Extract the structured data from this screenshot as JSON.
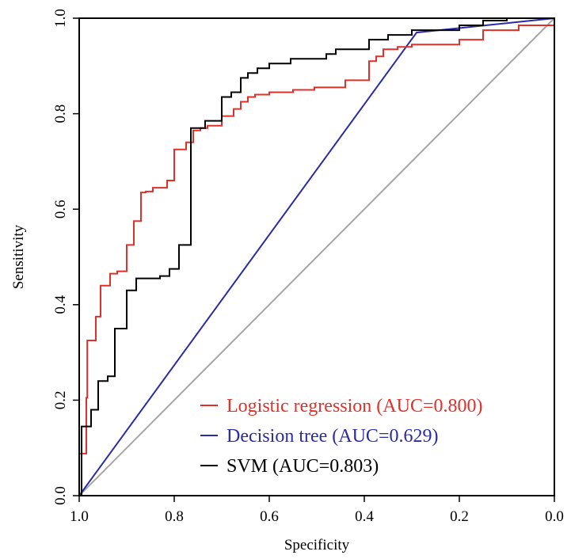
{
  "chart_data": {
    "type": "line",
    "xlabel": "Specificity",
    "ylabel": "Sensitivity",
    "xlim": [
      1.0,
      0.0
    ],
    "ylim": [
      0.0,
      1.0
    ],
    "x_ticks": [
      "1.0",
      "0.8",
      "0.6",
      "0.4",
      "0.2",
      "0.0"
    ],
    "y_ticks": [
      "0.0",
      "0.2",
      "0.4",
      "0.6",
      "0.8",
      "1.0"
    ],
    "grid": false,
    "legend_position": "bottom-right",
    "reference_line": {
      "x": [
        1.0,
        0.0
      ],
      "y": [
        0.0,
        1.0
      ],
      "color": "#a6a6a6"
    },
    "series": [
      {
        "name": "Logistic regression (AUC=0.800)",
        "color": "#e0302a",
        "x": [
          1.0,
          0.985,
          0.985,
          0.983,
          0.983,
          0.965,
          0.965,
          0.955,
          0.955,
          0.935,
          0.935,
          0.92,
          0.92,
          0.9,
          0.9,
          0.885,
          0.885,
          0.87,
          0.87,
          0.86,
          0.86,
          0.845,
          0.845,
          0.815,
          0.815,
          0.8,
          0.8,
          0.775,
          0.775,
          0.76,
          0.76,
          0.745,
          0.745,
          0.73,
          0.73,
          0.7,
          0.7,
          0.675,
          0.675,
          0.66,
          0.66,
          0.645,
          0.645,
          0.63,
          0.63,
          0.6,
          0.6,
          0.55,
          0.55,
          0.505,
          0.505,
          0.44,
          0.44,
          0.39,
          0.39,
          0.375,
          0.375,
          0.36,
          0.36,
          0.33,
          0.33,
          0.3,
          0.3,
          0.2,
          0.2,
          0.15,
          0.15,
          0.075,
          0.075,
          0.0
        ],
        "y": [
          0.088,
          0.088,
          0.205,
          0.205,
          0.325,
          0.325,
          0.375,
          0.375,
          0.44,
          0.44,
          0.465,
          0.465,
          0.47,
          0.47,
          0.525,
          0.525,
          0.575,
          0.575,
          0.635,
          0.635,
          0.637,
          0.637,
          0.645,
          0.645,
          0.66,
          0.66,
          0.725,
          0.725,
          0.74,
          0.74,
          0.765,
          0.765,
          0.77,
          0.77,
          0.775,
          0.775,
          0.795,
          0.795,
          0.81,
          0.81,
          0.825,
          0.825,
          0.835,
          0.835,
          0.84,
          0.84,
          0.845,
          0.845,
          0.85,
          0.85,
          0.855,
          0.855,
          0.87,
          0.87,
          0.91,
          0.91,
          0.92,
          0.92,
          0.935,
          0.935,
          0.94,
          0.94,
          0.945,
          0.945,
          0.955,
          0.955,
          0.975,
          0.975,
          0.985,
          0.985
        ]
      },
      {
        "name": "Decision tree (AUC=0.629)",
        "color": "#2b2ba8",
        "x": [
          1.0,
          0.29,
          0.0
        ],
        "y": [
          0.0,
          0.97,
          1.0
        ]
      },
      {
        "name": "SVM (AUC=0.803)",
        "color": "#000000",
        "x": [
          1.0,
          0.995,
          0.995,
          0.975,
          0.975,
          0.96,
          0.96,
          0.94,
          0.94,
          0.925,
          0.925,
          0.9,
          0.9,
          0.88,
          0.88,
          0.83,
          0.83,
          0.81,
          0.81,
          0.79,
          0.79,
          0.765,
          0.765,
          0.735,
          0.735,
          0.7,
          0.7,
          0.68,
          0.68,
          0.66,
          0.66,
          0.645,
          0.645,
          0.625,
          0.625,
          0.6,
          0.6,
          0.555,
          0.555,
          0.48,
          0.48,
          0.46,
          0.46,
          0.39,
          0.39,
          0.35,
          0.35,
          0.3,
          0.3,
          0.2,
          0.2,
          0.15,
          0.15,
          0.1,
          0.1,
          0.0
        ],
        "y": [
          0.0,
          0.0,
          0.145,
          0.145,
          0.18,
          0.18,
          0.24,
          0.24,
          0.25,
          0.25,
          0.35,
          0.35,
          0.43,
          0.43,
          0.455,
          0.455,
          0.46,
          0.46,
          0.475,
          0.475,
          0.525,
          0.525,
          0.77,
          0.77,
          0.785,
          0.785,
          0.835,
          0.835,
          0.845,
          0.845,
          0.875,
          0.875,
          0.885,
          0.885,
          0.895,
          0.895,
          0.905,
          0.905,
          0.915,
          0.915,
          0.925,
          0.925,
          0.935,
          0.935,
          0.955,
          0.955,
          0.965,
          0.965,
          0.975,
          0.975,
          0.985,
          0.985,
          0.995,
          0.995,
          1.0,
          1.0
        ]
      }
    ]
  }
}
